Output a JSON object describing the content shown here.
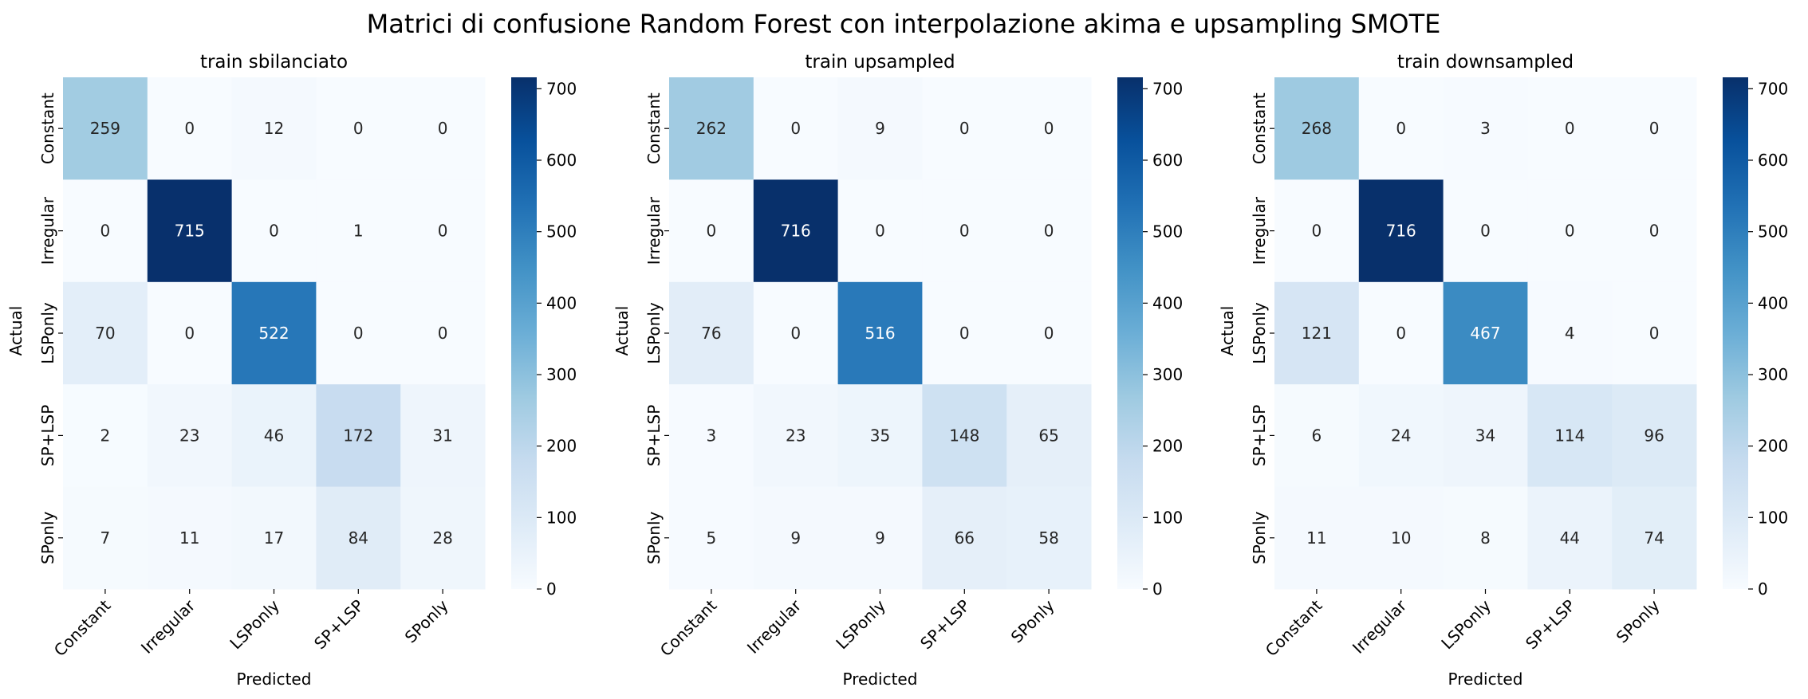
{
  "chart_data": {
    "type": "heatmap",
    "title": "Matrici di confusione Random Forest con interpolazione akima e upsampling SMOTE",
    "categories": [
      "Constant",
      "Irregular",
      "LSPonly",
      "SP+LSP",
      "SPonly"
    ],
    "colormap": "Blues",
    "colorbar": {
      "min": 0,
      "max": 716,
      "ticks": [
        0,
        100,
        200,
        300,
        400,
        500,
        600,
        700
      ]
    },
    "panels": [
      {
        "title": "train sbilanciato",
        "xlabel": "Predicted",
        "ylabel": "Actual",
        "matrix": [
          [
            259,
            0,
            12,
            0,
            0
          ],
          [
            0,
            715,
            0,
            1,
            0
          ],
          [
            70,
            0,
            522,
            0,
            0
          ],
          [
            2,
            23,
            46,
            172,
            31
          ],
          [
            7,
            11,
            17,
            84,
            28
          ]
        ]
      },
      {
        "title": "train upsampled",
        "xlabel": "Predicted",
        "ylabel": "Actual",
        "matrix": [
          [
            262,
            0,
            9,
            0,
            0
          ],
          [
            0,
            716,
            0,
            0,
            0
          ],
          [
            76,
            0,
            516,
            0,
            0
          ],
          [
            3,
            23,
            35,
            148,
            65
          ],
          [
            5,
            9,
            9,
            66,
            58
          ]
        ]
      },
      {
        "title": "train downsampled",
        "xlabel": "Predicted",
        "ylabel": "Actual",
        "matrix": [
          [
            268,
            0,
            3,
            0,
            0
          ],
          [
            0,
            716,
            0,
            0,
            0
          ],
          [
            121,
            0,
            467,
            4,
            0
          ],
          [
            6,
            24,
            34,
            114,
            96
          ],
          [
            11,
            10,
            8,
            44,
            74
          ]
        ]
      }
    ]
  }
}
